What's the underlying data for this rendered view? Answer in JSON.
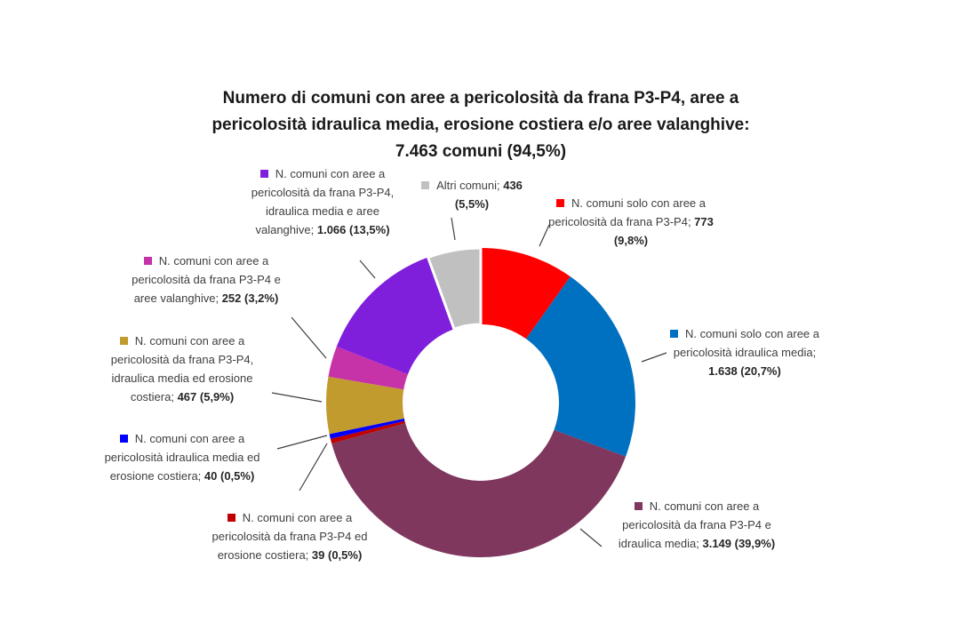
{
  "chart_data": {
    "type": "pie",
    "donut": true,
    "title": [
      "Numero di comuni con aree a pericolosità da frana P3-P4, aree a",
      "pericolosità idraulica media, erosione costiera e/o aree valanghive:",
      "7.463 comuni (94,5%)"
    ],
    "legend": "data labels with leader lines",
    "slices": [
      {
        "name": "N. comuni solo con aree a pericolosità da frana P3-P4; ",
        "value": 773,
        "label_value": "773 (9,8%)",
        "percent": 9.8,
        "color": "#ff0000"
      },
      {
        "name": "N. comuni solo con aree a pericolosità idraulica media; ",
        "value": 1638,
        "label_value": "1.638 (20,7%)",
        "percent": 20.7,
        "color": "#0070c0"
      },
      {
        "name": "N. comuni con aree a pericolosità da frana P3-P4 e idraulica media; ",
        "value": 3149,
        "label_value": "3.149 (39,9%)",
        "percent": 39.9,
        "color": "#7f375e"
      },
      {
        "name": "N. comuni con aree a pericolosità da frana P3-P4 ed erosione costiera; ",
        "value": 39,
        "label_value": "39 (0,5%)",
        "percent": 0.5,
        "color": "#c00000"
      },
      {
        "name": "N. comuni con aree a pericolosità idraulica media ed erosione costiera; ",
        "value": 40,
        "label_value": "40 (0,5%)",
        "percent": 0.5,
        "color": "#0000ff"
      },
      {
        "name": "N. comuni con aree a pericolosità da frana P3-P4, idraulica media ed erosione costiera; ",
        "value": 467,
        "label_value": "467 (5,9%)",
        "percent": 5.9,
        "color": "#c29b2f"
      },
      {
        "name": "N. comuni con aree a pericolosità da frana P3-P4 e aree valanghive; ",
        "value": 252,
        "label_value": "252 (3,2%)",
        "percent": 3.2,
        "color": "#c632a8"
      },
      {
        "name": "N. comuni con aree a pericolosità da frana P3-P4, idraulica media e aree valanghive; ",
        "value": 1066,
        "label_value": "1.066 (13,5%)",
        "percent": 13.5,
        "color": "#7f1fdc"
      },
      {
        "name": "Altri comuni; ",
        "value": 436,
        "label_value": "436 (5,5%)",
        "percent": 5.5,
        "color": "#c0c0c0"
      }
    ]
  }
}
